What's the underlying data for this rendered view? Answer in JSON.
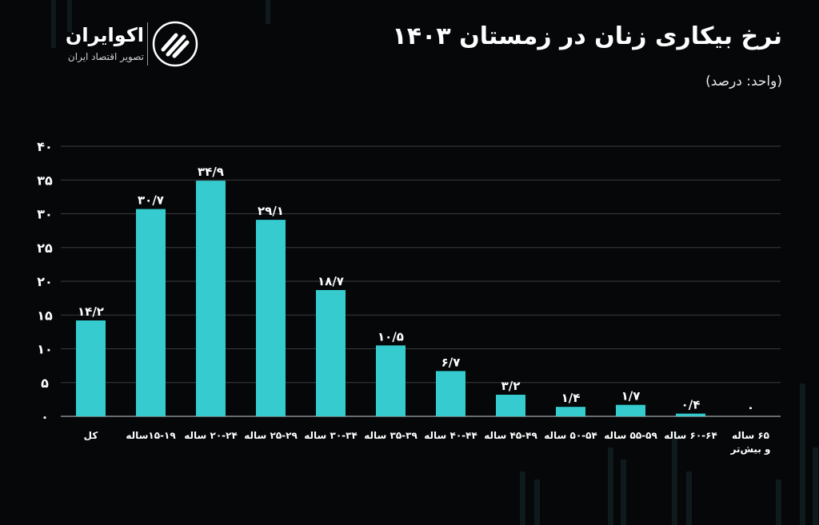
{
  "title": "نرخ بیکاری زنان در زمستان ۱۴۰۳",
  "unit": "(واحد: درصد)",
  "logo": {
    "name": "اکوایران",
    "tagline": "تصویر اقتصاد ایران",
    "icon": "ecoiran-logo-icon"
  },
  "colors": {
    "background": "#050708",
    "bar": "#35cbcf",
    "grid": "#3a3d40",
    "text": "#ffffff"
  },
  "chart_data": {
    "type": "bar",
    "categories": [
      "کل",
      "۱۵-۱۹ساله",
      "۲۰-۲۴ ساله",
      "۲۵-۲۹ ساله",
      "۳۰-۳۴ ساله",
      "۳۵-۳۹ ساله",
      "۴۰-۴۴ ساله",
      "۴۵-۴۹ ساله",
      "۵۰-۵۴ ساله",
      "۵۵-۵۹ ساله",
      "۶۰-۶۴ ساله",
      "۶۵ ساله و بیش‌تر"
    ],
    "values": [
      14.2,
      30.7,
      34.9,
      29.1,
      18.7,
      10.5,
      6.7,
      3.2,
      1.4,
      1.7,
      0.4,
      0
    ],
    "value_labels": [
      "۱۴/۲",
      "۳۰/۷",
      "۳۴/۹",
      "۲۹/۱",
      "۱۸/۷",
      "۱۰/۵",
      "۶/۷",
      "۳/۲",
      "۱/۴",
      "۱/۷",
      "۰/۴",
      "۰"
    ],
    "ylim": [
      0,
      40
    ],
    "yticks": [
      0,
      5,
      10,
      15,
      20,
      25,
      30,
      35,
      40
    ],
    "ytick_labels": [
      "۰",
      "۵",
      "۱۰",
      "۱۵",
      "۲۰",
      "۲۵",
      "۳۰",
      "۳۵",
      "۴۰"
    ],
    "grid": true,
    "legend": "none"
  }
}
